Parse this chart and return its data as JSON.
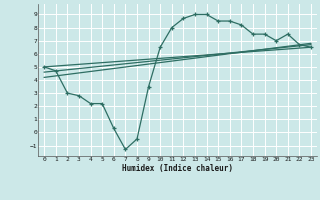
{
  "title": "",
  "xlabel": "Humidex (Indice chaleur)",
  "background_color": "#cce8e8",
  "grid_color": "#b0d4d4",
  "line_color": "#2e6e63",
  "xlim": [
    -0.5,
    23.5
  ],
  "ylim": [
    -1.8,
    9.8
  ],
  "xticks": [
    0,
    1,
    2,
    3,
    4,
    5,
    6,
    7,
    8,
    9,
    10,
    11,
    12,
    13,
    14,
    15,
    16,
    17,
    18,
    19,
    20,
    21,
    22,
    23
  ],
  "yticks": [
    -1,
    0,
    1,
    2,
    3,
    4,
    5,
    6,
    7,
    8,
    9
  ],
  "main_x": [
    0,
    1,
    2,
    3,
    4,
    5,
    6,
    7,
    8,
    9,
    10,
    11,
    12,
    13,
    14,
    15,
    16,
    17,
    18,
    19,
    20,
    21,
    22,
    23
  ],
  "main_y": [
    5.0,
    4.7,
    3.0,
    2.8,
    2.2,
    2.2,
    0.3,
    -1.3,
    -0.5,
    3.5,
    6.5,
    8.0,
    8.7,
    9.0,
    9.0,
    8.5,
    8.5,
    8.2,
    7.5,
    7.5,
    7.0,
    7.5,
    6.7,
    6.5
  ],
  "line1_x": [
    0,
    23
  ],
  "line1_y": [
    5.0,
    6.5
  ],
  "line2_x": [
    0,
    23
  ],
  "line2_y": [
    4.6,
    6.7
  ],
  "line3_x": [
    0,
    23
  ],
  "line3_y": [
    4.2,
    6.8
  ]
}
